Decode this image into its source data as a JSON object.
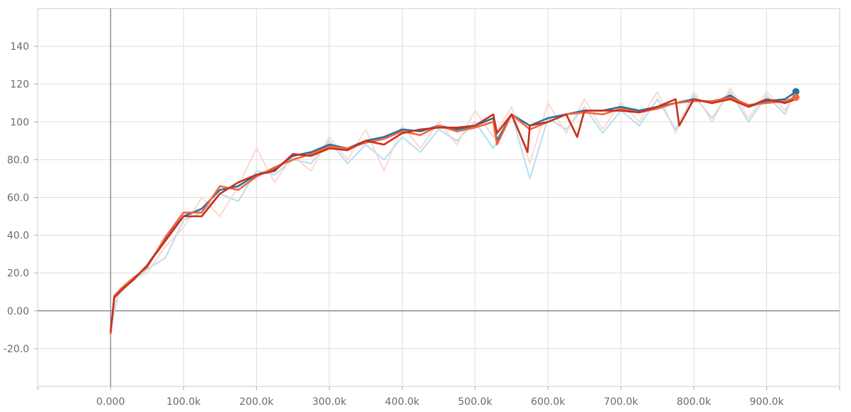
{
  "chart_data": {
    "type": "line",
    "title": "",
    "xlabel": "",
    "ylabel": "",
    "xlim": [
      -100000,
      1000000
    ],
    "ylim": [
      -40,
      160
    ],
    "grid": true,
    "legend": "none",
    "x_ticks": [
      {
        "value": 0,
        "label": "0.000"
      },
      {
        "value": 100000,
        "label": "100.0k"
      },
      {
        "value": 200000,
        "label": "200.0k"
      },
      {
        "value": 300000,
        "label": "300.0k"
      },
      {
        "value": 400000,
        "label": "400.0k"
      },
      {
        "value": 500000,
        "label": "500.0k"
      },
      {
        "value": 600000,
        "label": "600.0k"
      },
      {
        "value": 700000,
        "label": "700.0k"
      },
      {
        "value": 800000,
        "label": "800.0k"
      },
      {
        "value": 900000,
        "label": "900.0k"
      }
    ],
    "y_ticks": [
      {
        "value": -20,
        "label": "-20.0"
      },
      {
        "value": 0,
        "label": "0.00"
      },
      {
        "value": 20,
        "label": "20.0"
      },
      {
        "value": 40,
        "label": "40.0"
      },
      {
        "value": 60,
        "label": "60.0"
      },
      {
        "value": 80,
        "label": "80.0"
      },
      {
        "value": 100,
        "label": "100"
      },
      {
        "value": 120,
        "label": "120"
      },
      {
        "value": 140,
        "label": "140"
      }
    ],
    "series": [
      {
        "id": "blue-raw",
        "color": "#a9d8f0",
        "role": "raw",
        "x": [
          0,
          10000,
          25000,
          50000,
          75000,
          100000,
          125000,
          150000,
          175000,
          200000,
          225000,
          250000,
          275000,
          300000,
          325000,
          350000,
          375000,
          400000,
          425000,
          450000,
          475000,
          500000,
          525000,
          550000,
          575000,
          600000,
          625000,
          650000,
          675000,
          700000,
          725000,
          750000,
          775000,
          800000,
          825000,
          850000,
          875000,
          900000,
          925000,
          940000
        ],
        "y": [
          -10,
          8,
          14,
          22,
          28,
          48,
          52,
          62,
          58,
          74,
          72,
          80,
          78,
          90,
          78,
          88,
          80,
          92,
          84,
          96,
          90,
          100,
          86,
          104,
          70,
          102,
          96,
          108,
          94,
          106,
          98,
          112,
          96,
          114,
          102,
          116,
          100,
          114,
          104,
          118
        ]
      },
      {
        "id": "orange-raw",
        "color": "#fcd2c5",
        "role": "raw",
        "x": [
          0,
          10000,
          25000,
          50000,
          75000,
          100000,
          125000,
          150000,
          175000,
          200000,
          225000,
          250000,
          275000,
          300000,
          325000,
          350000,
          375000,
          400000,
          425000,
          450000,
          475000,
          500000,
          525000,
          550000,
          575000,
          600000,
          625000,
          650000,
          675000,
          700000,
          725000,
          750000,
          775000,
          800000,
          825000,
          850000,
          875000,
          900000,
          925000,
          940000
        ],
        "y": [
          -8,
          10,
          16,
          20,
          34,
          44,
          60,
          50,
          66,
          86,
          68,
          82,
          74,
          92,
          80,
          96,
          74,
          98,
          86,
          100,
          88,
          106,
          92,
          108,
          78,
          110,
          94,
          112,
          96,
          110,
          100,
          116,
          94,
          116,
          100,
          118,
          102,
          116,
          106,
          116
        ]
      },
      {
        "id": "blue-smoothed",
        "color": "#2a6fa6",
        "role": "smoothed",
        "x": [
          0,
          5000,
          15000,
          30000,
          50000,
          75000,
          100000,
          125000,
          150000,
          175000,
          200000,
          225000,
          250000,
          275000,
          300000,
          325000,
          350000,
          375000,
          400000,
          425000,
          450000,
          475000,
          500000,
          525000,
          530000,
          550000,
          575000,
          600000,
          625000,
          650000,
          675000,
          700000,
          725000,
          750000,
          775000,
          800000,
          825000,
          850000,
          875000,
          900000,
          925000,
          940000
        ],
        "y": [
          -11,
          7,
          12,
          16,
          24,
          38,
          50,
          54,
          64,
          66,
          72,
          75,
          82,
          84,
          88,
          86,
          90,
          92,
          96,
          95,
          98,
          96,
          98,
          102,
          90,
          104,
          98,
          102,
          104,
          106,
          106,
          108,
          106,
          108,
          110,
          112,
          110,
          114,
          108,
          111,
          112,
          116
        ]
      },
      {
        "id": "orange-smoothed",
        "color": "#f4653a",
        "role": "smoothed",
        "x": [
          0,
          5000,
          15000,
          30000,
          50000,
          75000,
          100000,
          125000,
          150000,
          175000,
          200000,
          225000,
          250000,
          275000,
          300000,
          325000,
          350000,
          375000,
          400000,
          425000,
          450000,
          475000,
          500000,
          525000,
          530000,
          550000,
          575000,
          600000,
          625000,
          650000,
          675000,
          700000,
          725000,
          750000,
          775000,
          800000,
          825000,
          850000,
          875000,
          900000,
          925000,
          940000
        ],
        "y": [
          -12,
          8,
          12,
          17,
          23,
          39,
          52,
          52,
          66,
          64,
          71,
          76,
          80,
          83,
          87,
          86,
          89,
          91,
          95,
          93,
          98,
          95,
          97,
          100,
          88,
          104,
          96,
          100,
          104,
          105,
          104,
          107,
          105,
          107,
          110,
          111,
          111,
          113,
          109,
          110,
          111,
          113
        ]
      },
      {
        "id": "red-smoothed",
        "color": "#c9301c",
        "role": "smoothed",
        "x": [
          0,
          5000,
          15000,
          30000,
          50000,
          75000,
          100000,
          125000,
          150000,
          175000,
          200000,
          225000,
          250000,
          275000,
          300000,
          325000,
          350000,
          375000,
          400000,
          425000,
          450000,
          475000,
          500000,
          525000,
          530000,
          550000,
          572000,
          575000,
          600000,
          625000,
          640000,
          650000,
          675000,
          700000,
          725000,
          750000,
          775000,
          780000,
          800000,
          825000,
          850000,
          875000,
          900000,
          925000,
          940000
        ],
        "y": [
          -11,
          7,
          11,
          16,
          24,
          37,
          50,
          50,
          62,
          68,
          72,
          74,
          83,
          82,
          86,
          85,
          90,
          88,
          94,
          96,
          97,
          97,
          98,
          104,
          94,
          104,
          84,
          98,
          100,
          104,
          92,
          106,
          106,
          106,
          105,
          108,
          112,
          98,
          112,
          110,
          112,
          108,
          112,
          110,
          112
        ]
      }
    ],
    "end_markers": [
      {
        "series": "blue-smoothed",
        "x": 940000,
        "y": 116,
        "color": "#2a6fa6"
      },
      {
        "series": "orange-smoothed",
        "x": 940000,
        "y": 113,
        "color": "#f4653a"
      }
    ]
  }
}
